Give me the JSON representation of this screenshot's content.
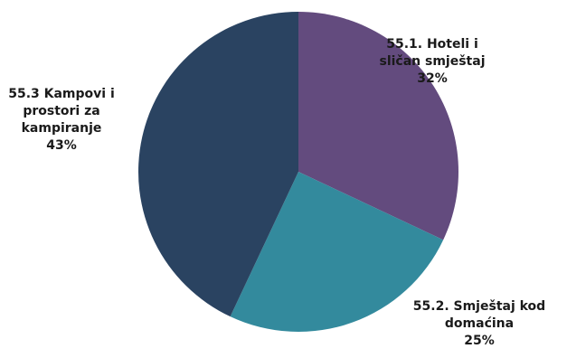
{
  "chart_data": {
    "type": "pie",
    "categories": [
      "55.1. Hoteli i sličan smještaj",
      "55.2. Smještaj kod domaćina",
      "55.3 Kampovi i prostori za kampiranje"
    ],
    "values": [
      32,
      25,
      43
    ],
    "colors": [
      "#634b7e",
      "#338a9d",
      "#2a4361"
    ],
    "labels": [
      {
        "lines": [
          "55.1. Hoteli i",
          "sličan smještaj"
        ],
        "value": "32%"
      },
      {
        "lines": [
          "55.2. Smještaj kod",
          "domaćina"
        ],
        "value": "25%"
      },
      {
        "lines": [
          "55.3 Kampovi i",
          "prostori za",
          "kampiranje"
        ],
        "value": "43%"
      }
    ],
    "start_angle_deg": 0,
    "direction": "clockwise",
    "legend": "none"
  }
}
